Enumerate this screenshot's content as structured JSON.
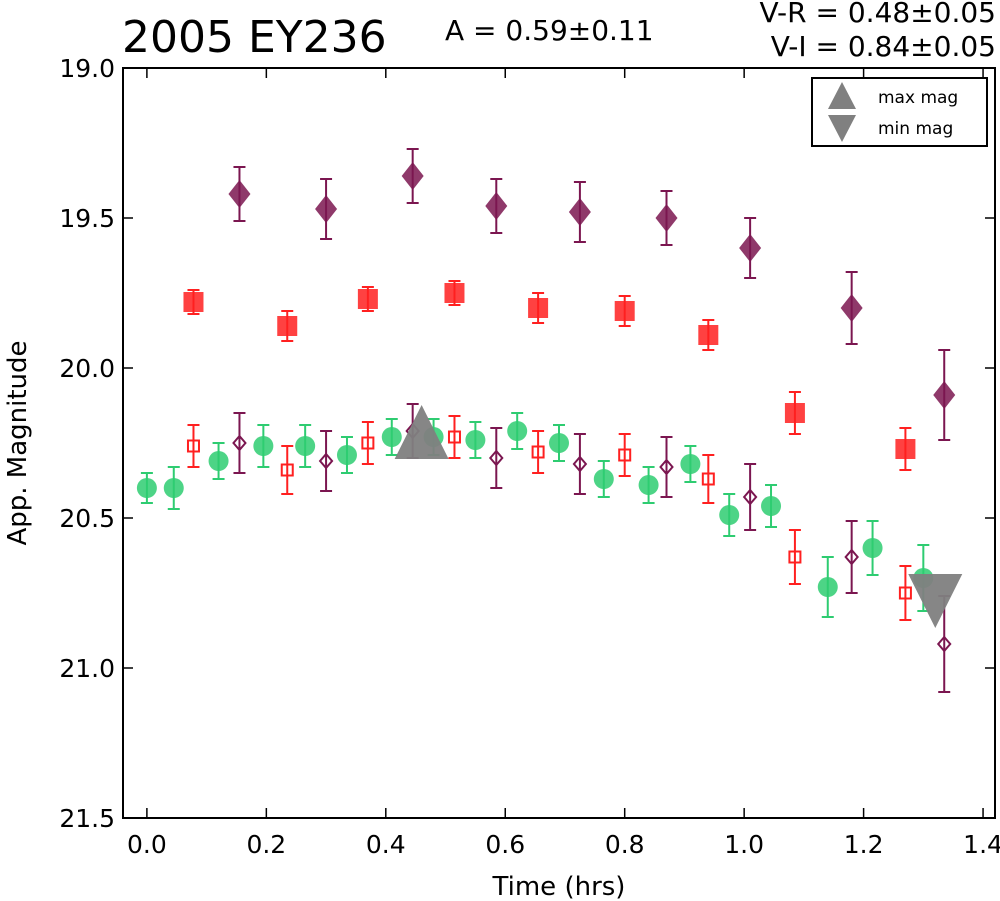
{
  "header": {
    "title": "2005 EY236",
    "amplitude": "A  = 0.59±0.11",
    "v_r": "V-R = 0.48±0.05",
    "v_i": "V-I  = 0.84±0.05"
  },
  "chart_data": {
    "type": "scatter",
    "title": "2005 EY236",
    "xlabel": "Time (hrs)",
    "ylabel": "App. Magnitude",
    "xlim": [
      -0.04,
      1.42
    ],
    "ylim": [
      21.5,
      19.0
    ],
    "y_inverted": true,
    "xticks": [
      "0.0",
      "0.2",
      "0.4",
      "0.6",
      "0.8",
      "1.0",
      "1.2",
      "1.4"
    ],
    "yticks": [
      "19.0",
      "19.5",
      "20.0",
      "20.5",
      "21.0",
      "21.5"
    ],
    "grid": false,
    "legend": {
      "location": "top-right",
      "entries": [
        {
          "label": "max mag",
          "marker": "triangle-up",
          "color": "#808080"
        },
        {
          "label": "min mag",
          "marker": "triangle-down",
          "color": "#808080"
        }
      ]
    },
    "colors": {
      "green": "#2ecc71",
      "red": "#ff2020",
      "purple": "#7b1650",
      "gray": "#808080"
    },
    "series": [
      {
        "marker": "circle",
        "filled": true,
        "color": "#2ecc71",
        "x": [
          0.0,
          0.045,
          0.12,
          0.195,
          0.265,
          0.335,
          0.41,
          0.48,
          0.55,
          0.62,
          0.69,
          0.765,
          0.84,
          0.91,
          0.975,
          1.045,
          1.14,
          1.215,
          1.3
        ],
        "y": [
          20.4,
          20.4,
          20.31,
          20.26,
          20.26,
          20.29,
          20.23,
          20.23,
          20.24,
          20.21,
          20.25,
          20.37,
          20.39,
          20.32,
          20.49,
          20.46,
          20.73,
          20.6,
          20.7
        ],
        "err": [
          0.05,
          0.07,
          0.06,
          0.07,
          0.07,
          0.06,
          0.06,
          0.06,
          0.06,
          0.06,
          0.06,
          0.06,
          0.06,
          0.06,
          0.07,
          0.07,
          0.1,
          0.09,
          0.11
        ]
      },
      {
        "marker": "square",
        "filled": false,
        "color": "#ff2020",
        "x": [
          0.078,
          0.235,
          0.37,
          0.515,
          0.655,
          0.8,
          0.94,
          1.085,
          1.27
        ],
        "y": [
          20.26,
          20.34,
          20.25,
          20.23,
          20.28,
          20.29,
          20.37,
          20.63,
          20.75
        ],
        "err": [
          0.07,
          0.08,
          0.07,
          0.07,
          0.07,
          0.07,
          0.08,
          0.09,
          0.09
        ]
      },
      {
        "marker": "square",
        "filled": true,
        "color": "#ff2020",
        "x": [
          0.078,
          0.235,
          0.37,
          0.515,
          0.655,
          0.8,
          0.94,
          1.085,
          1.27
        ],
        "y": [
          19.78,
          19.86,
          19.77,
          19.75,
          19.8,
          19.81,
          19.89,
          20.15,
          20.27
        ],
        "err": [
          0.04,
          0.05,
          0.04,
          0.04,
          0.05,
          0.05,
          0.05,
          0.07,
          0.07
        ]
      },
      {
        "marker": "diamond",
        "filled": false,
        "color": "#7b1650",
        "x": [
          0.155,
          0.3,
          0.445,
          0.585,
          0.725,
          0.87,
          1.01,
          1.18,
          1.335
        ],
        "y": [
          20.25,
          20.31,
          20.21,
          20.3,
          20.32,
          20.33,
          20.43,
          20.63,
          20.92
        ],
        "err": [
          0.1,
          0.1,
          0.09,
          0.1,
          0.1,
          0.1,
          0.11,
          0.12,
          0.16
        ]
      },
      {
        "marker": "diamond",
        "filled": true,
        "color": "#7b1650",
        "x": [
          0.155,
          0.3,
          0.445,
          0.585,
          0.725,
          0.87,
          1.01,
          1.18,
          1.335
        ],
        "y": [
          19.42,
          19.47,
          19.36,
          19.46,
          19.48,
          19.5,
          19.6,
          19.8,
          20.09
        ],
        "err": [
          0.09,
          0.1,
          0.09,
          0.09,
          0.1,
          0.09,
          0.1,
          0.12,
          0.15
        ]
      },
      {
        "marker": "triangle-up",
        "filled": true,
        "color": "#808080",
        "x": [
          0.46
        ],
        "y": [
          20.23
        ],
        "err": [
          0
        ]
      },
      {
        "marker": "triangle-down",
        "filled": true,
        "color": "#808080",
        "x": [
          1.32
        ],
        "y": [
          20.78
        ],
        "err": [
          0
        ]
      }
    ]
  }
}
